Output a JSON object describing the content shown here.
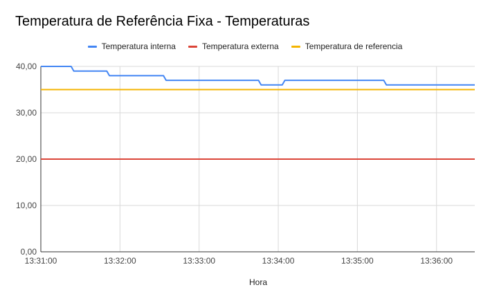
{
  "chart_data": {
    "type": "line",
    "title": "Temperatura de Referência Fixa - Temperaturas",
    "xlabel": "Hora",
    "ylabel": "",
    "legend_position": "top",
    "grid": true,
    "xlim": [
      "13:31:00",
      "13:36:29"
    ],
    "ylim": [
      0,
      40
    ],
    "x_ticks": [
      "13:31:00",
      "13:32:00",
      "13:33:00",
      "13:34:00",
      "13:35:00",
      "13:36:00"
    ],
    "y_ticks": [
      "0,00",
      "10,00",
      "20,00",
      "30,00",
      "40,00"
    ],
    "series": [
      {
        "name": "Temperatura interna",
        "color": "#4285f4",
        "points": [
          [
            "13:31:00",
            40
          ],
          [
            "13:31:23",
            40
          ],
          [
            "13:31:25",
            39
          ],
          [
            "13:31:50",
            39
          ],
          [
            "13:31:52",
            38
          ],
          [
            "13:32:33",
            38
          ],
          [
            "13:32:35",
            37
          ],
          [
            "13:33:45",
            37
          ],
          [
            "13:33:47",
            36
          ],
          [
            "13:34:03",
            36
          ],
          [
            "13:34:05",
            37
          ],
          [
            "13:35:20",
            37
          ],
          [
            "13:35:22",
            36
          ],
          [
            "13:36:29",
            36
          ]
        ]
      },
      {
        "name": "Temperatura externa",
        "color": "#db4437",
        "points": [
          [
            "13:31:00",
            20
          ],
          [
            "13:36:29",
            20
          ]
        ]
      },
      {
        "name": "Temperatura de referencia",
        "color": "#f4b400",
        "points": [
          [
            "13:31:00",
            35
          ],
          [
            "13:36:29",
            35
          ]
        ]
      }
    ]
  }
}
